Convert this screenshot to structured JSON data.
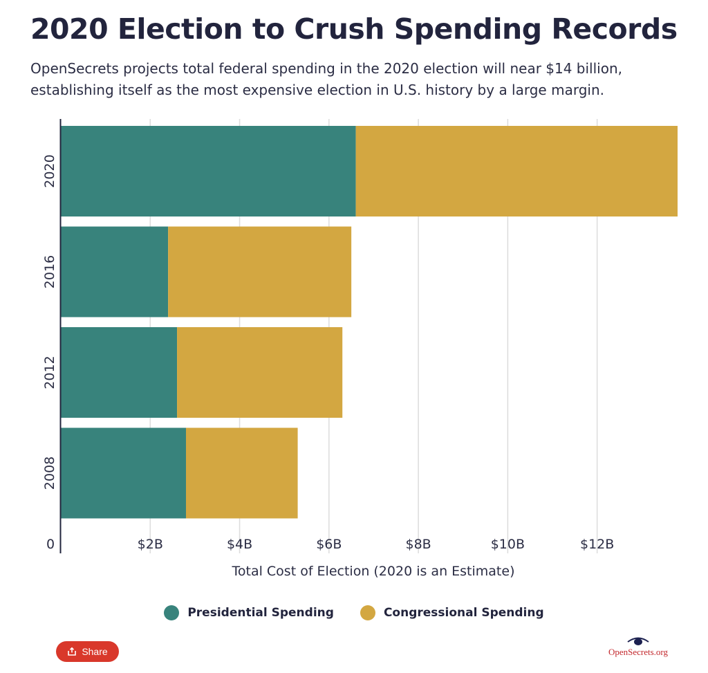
{
  "header": {
    "title": "2020 Election to Crush Spending Records",
    "subtitle": "OpenSecrets projects total federal spending in the 2020 election will near $14 billion, establishing itself as the most expensive election in U.S. history by a large margin."
  },
  "chart_data": {
    "type": "bar",
    "orientation": "horizontal",
    "stacked": true,
    "categories": [
      "2020",
      "2016",
      "2012",
      "2008"
    ],
    "series": [
      {
        "name": "Presidential Spending",
        "color": "#38837c",
        "values": [
          6.6,
          2.4,
          2.6,
          2.8
        ]
      },
      {
        "name": "Congressional Spending",
        "color": "#d3a741",
        "values": [
          7.2,
          4.1,
          3.7,
          2.5
        ]
      }
    ],
    "x_ticks": [
      {
        "value": 0,
        "label": "0"
      },
      {
        "value": 2,
        "label": "$2B"
      },
      {
        "value": 4,
        "label": "$4B"
      },
      {
        "value": 6,
        "label": "$6B"
      },
      {
        "value": 8,
        "label": "$8B"
      },
      {
        "value": 10,
        "label": "$10B"
      },
      {
        "value": 12,
        "label": "$12B"
      }
    ],
    "xlabel": "Total Cost of Election (2020 is an Estimate)",
    "ylabel": "",
    "xlim": [
      0,
      13.8
    ],
    "grid": "vertical",
    "legend": "bottom-center"
  },
  "share": {
    "label": "Share"
  },
  "brand": {
    "name": "OpenSecrets.org"
  },
  "icons": {
    "share": "share-icon",
    "brand": "eye-logo-icon"
  }
}
